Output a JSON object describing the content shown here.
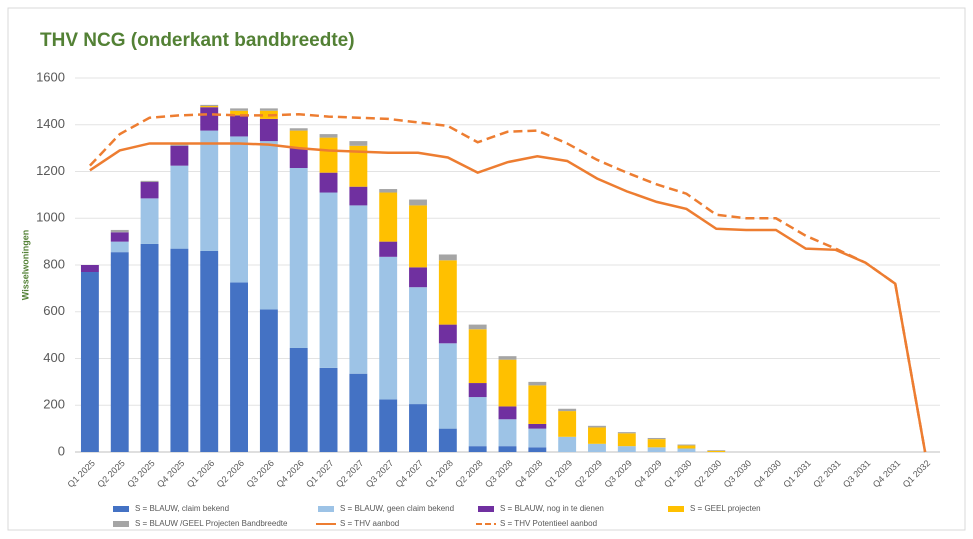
{
  "chart_data": {
    "type": "bar",
    "stacked": true,
    "title": "THV NCG (onderkant bandbreedte)",
    "y_label": "Wisselwoningen",
    "categories": [
      "Q1 2025",
      "Q2 2025",
      "Q3 2025",
      "Q4 2025",
      "Q1 2026",
      "Q2 2026",
      "Q3 2026",
      "Q4 2026",
      "Q1 2027",
      "Q2 2027",
      "Q3 2027",
      "Q4 2027",
      "Q1 2028",
      "Q2 2028",
      "Q3 2028",
      "Q4 2028",
      "Q1 2029",
      "Q2 2029",
      "Q3 2029",
      "Q4 2029",
      "Q1 2030",
      "Q2 2030",
      "Q3 2030",
      "Q4 2030",
      "Q1 2031",
      "Q2 2031",
      "Q3 2031",
      "Q4 2031",
      "Q1 2032"
    ],
    "ylim": [
      0,
      1600
    ],
    "yticks": [
      0,
      200,
      400,
      600,
      800,
      1000,
      1200,
      1400,
      1600
    ],
    "grid": true,
    "series": [
      {
        "name": "S = BLAUW, claim bekend",
        "type": "bar",
        "color": "#4472c4",
        "values": [
          770,
          855,
          890,
          870,
          860,
          725,
          610,
          445,
          360,
          335,
          225,
          205,
          100,
          25,
          25,
          20,
          0,
          0,
          0,
          0,
          0,
          0,
          0,
          0,
          0,
          0,
          0,
          0,
          0
        ]
      },
      {
        "name": "S = BLAUW, geen claim bekend",
        "type": "bar",
        "color": "#9dc3e6",
        "values": [
          0,
          45,
          195,
          355,
          515,
          625,
          720,
          770,
          750,
          720,
          610,
          500,
          365,
          210,
          115,
          80,
          65,
          35,
          25,
          20,
          15,
          0,
          0,
          0,
          0,
          0,
          0,
          0,
          0
        ]
      },
      {
        "name": "S = BLAUW, nog in te dienen",
        "type": "bar",
        "color": "#7030a0",
        "values": [
          30,
          40,
          70,
          85,
          100,
          90,
          95,
          85,
          85,
          80,
          65,
          85,
          80,
          60,
          55,
          20,
          0,
          0,
          0,
          0,
          0,
          0,
          0,
          0,
          0,
          0,
          0,
          0,
          0
        ]
      },
      {
        "name": "S = GEEL projecten",
        "type": "bar",
        "color": "#ffc000",
        "values": [
          0,
          0,
          0,
          0,
          5,
          20,
          35,
          75,
          150,
          175,
          210,
          265,
          275,
          230,
          200,
          165,
          110,
          70,
          55,
          35,
          13,
          5,
          0,
          0,
          0,
          0,
          0,
          0,
          0
        ]
      },
      {
        "name": "S = BLAUW /GEEL Projecten Bandbreedte",
        "type": "bar",
        "color": "#a5a5a5",
        "values": [
          0,
          10,
          5,
          5,
          5,
          10,
          10,
          10,
          15,
          20,
          15,
          25,
          25,
          20,
          15,
          15,
          10,
          7,
          5,
          5,
          4,
          3,
          0,
          0,
          0,
          0,
          0,
          0,
          0
        ]
      },
      {
        "name": "S = THV aanbod",
        "type": "line",
        "dashed": false,
        "color": "#ed7d31",
        "values": [
          1205,
          1290,
          1320,
          1320,
          1320,
          1320,
          1315,
          1300,
          1290,
          1285,
          1280,
          1280,
          1260,
          1195,
          1240,
          1265,
          1245,
          1170,
          1115,
          1070,
          1040,
          955,
          950,
          950,
          870,
          865,
          810,
          720,
          0
        ]
      },
      {
        "name": "S = THV Potentieel aanbod",
        "type": "line",
        "dashed": true,
        "color": "#ed7d31",
        "values": [
          1225,
          1360,
          1430,
          1440,
          1445,
          1440,
          1440,
          1445,
          1435,
          1430,
          1425,
          1410,
          1395,
          1325,
          1370,
          1375,
          1320,
          1250,
          1195,
          1145,
          1105,
          1015,
          1000,
          1000,
          925,
          870,
          810,
          720,
          0
        ]
      }
    ]
  }
}
